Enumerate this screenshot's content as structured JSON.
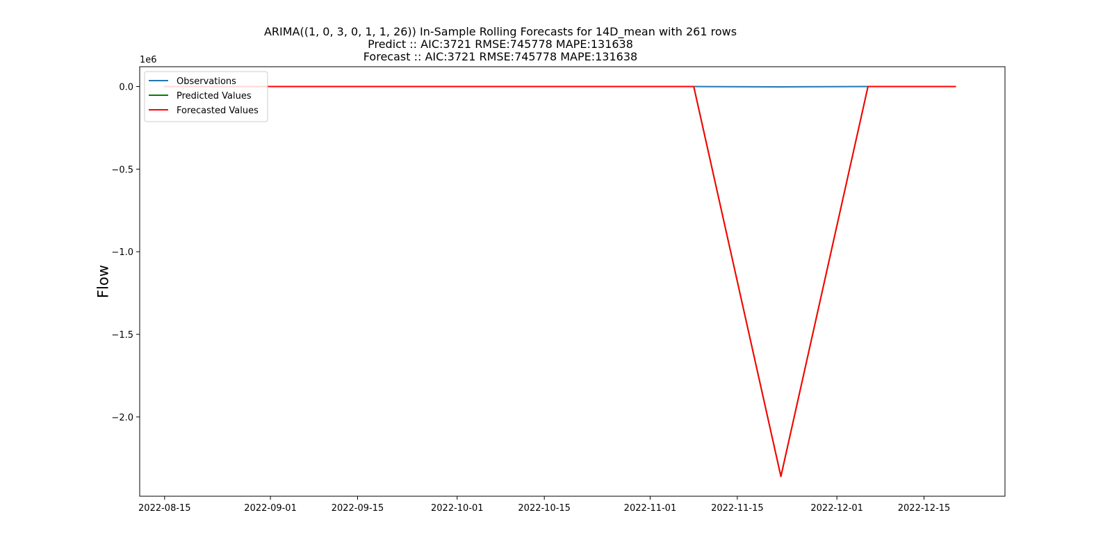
{
  "chart_data": {
    "type": "line",
    "title": "ARIMA((1, 0, 3, 0, 1, 1, 26)) In-Sample Rolling Forecasts for 14D_mean with 261 rows",
    "subtitle_lines": [
      "Predict :: AIC:3721 RMSE:745778 MAPE:131638",
      "Forecast :: AIC:3721 RMSE:745778 MAPE:131638"
    ],
    "xlabel": "",
    "ylabel": "Flow",
    "y_scale_label": "1e6",
    "xlim": [
      "2022-08-11",
      "2022-12-28"
    ],
    "ylim": [
      -2.48,
      0.12
    ],
    "y_unit_multiplier": 1000000,
    "x_ticks": [
      "2022-08-15",
      "2022-09-01",
      "2022-09-15",
      "2022-10-01",
      "2022-10-15",
      "2022-11-01",
      "2022-11-15",
      "2022-12-01",
      "2022-12-15"
    ],
    "y_ticks": [
      0.0,
      -0.5,
      -1.0,
      -1.5,
      -2.0
    ],
    "y_tick_labels": [
      "0.0",
      "−0.5",
      "−1.0",
      "−1.5",
      "−2.0"
    ],
    "grid": false,
    "legend_position": "upper-left",
    "series": [
      {
        "name": "Observations",
        "color": "#1f77b4",
        "points": [
          {
            "x": "2022-08-15",
            "y": 0.0
          },
          {
            "x": "2022-11-08",
            "y": 0.0
          },
          {
            "x": "2022-11-22",
            "y": -0.002
          },
          {
            "x": "2022-12-06",
            "y": 0.0
          },
          {
            "x": "2022-12-20",
            "y": 0.0
          }
        ]
      },
      {
        "name": "Predicted Values",
        "color": "#008000",
        "points": [
          {
            "x": "2022-08-15",
            "y": 0.0
          },
          {
            "x": "2022-11-08",
            "y": 0.0
          },
          {
            "x": "2022-11-22",
            "y": -2.36
          },
          {
            "x": "2022-12-06",
            "y": 0.0
          },
          {
            "x": "2022-12-20",
            "y": 0.0
          }
        ]
      },
      {
        "name": "Forecasted Values",
        "color": "#ff0000",
        "points": [
          {
            "x": "2022-08-15",
            "y": 0.0
          },
          {
            "x": "2022-11-08",
            "y": 0.0
          },
          {
            "x": "2022-11-22",
            "y": -2.36
          },
          {
            "x": "2022-12-06",
            "y": 0.0
          },
          {
            "x": "2022-12-20",
            "y": 0.0
          }
        ]
      }
    ]
  }
}
